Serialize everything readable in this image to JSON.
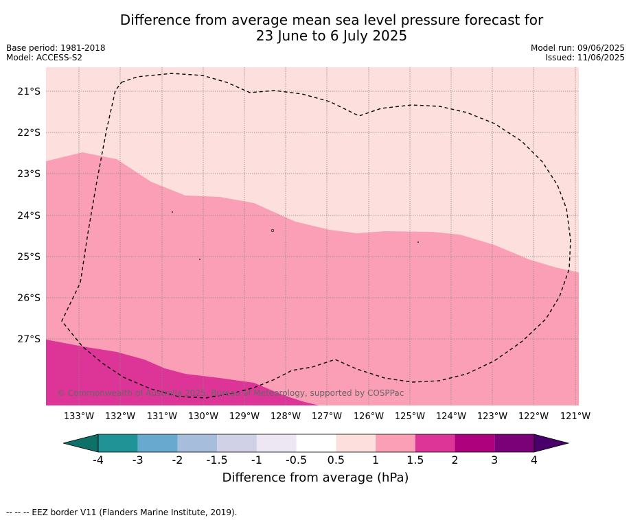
{
  "title_line1": "Difference from average mean sea level pressure forecast for",
  "title_line2": "23 June to 6 July 2025",
  "base_period": "Base period: 1981-2018",
  "model": "Model: ACCESS-S2",
  "model_run": "Model run: 09/06/2025",
  "issued": "Issued: 11/06/2025",
  "copyright": "© Commonwealth of Australia 2025, Bureau of Meteorology, supported by COSPPac",
  "lat_labels": [
    "21°S",
    "22°S",
    "23°S",
    "24°S",
    "25°S",
    "26°S",
    "27°S"
  ],
  "lon_labels": [
    "133°W",
    "132°W",
    "131°W",
    "130°W",
    "129°W",
    "128°W",
    "127°W",
    "126°W",
    "125°W",
    "124°W",
    "123°W",
    "122°W",
    "121°W"
  ],
  "colorbar": {
    "title": "Difference from average (hPa)",
    "ticks": [
      "-4",
      "-3",
      "-2",
      "-1.5",
      "-1",
      "-0.5",
      "0.5",
      "1",
      "1.5",
      "2",
      "3",
      "4"
    ],
    "colors": [
      "#0d7168",
      "#1f9396",
      "#67a9cf",
      "#a6bddb",
      "#d0d1e6",
      "#ece7f2",
      "#ffffff",
      "#fde0dd",
      "#fa9fb5",
      "#dd3497",
      "#ae017e",
      "#7a0177",
      "#49006a"
    ]
  },
  "map_colors": {
    "band_0_5_to_1": "#fde0dd",
    "band_1_to_1_5": "#fa9fb5",
    "band_1_5_to_2": "#dd3497"
  },
  "footnote": "--  --  -- EEZ border V11 (Flanders Marine Institute, 2019)."
}
